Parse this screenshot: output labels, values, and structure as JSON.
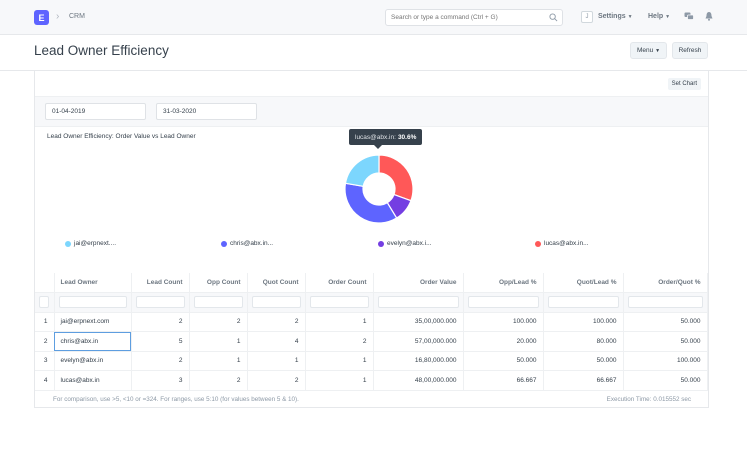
{
  "navbar": {
    "logo_letter": "E",
    "breadcrumb": "CRM",
    "search_placeholder": "Search or type a command (Ctrl + G)",
    "user_initial": "J",
    "settings_label": "Settings",
    "help_label": "Help"
  },
  "page": {
    "title": "Lead Owner Efficiency",
    "menu_label": "Menu",
    "refresh_label": "Refresh"
  },
  "report": {
    "set_chart_label": "Set Chart",
    "filters": {
      "from_date": "01-04-2019",
      "to_date": "31-03-2020"
    },
    "chart_title": "Lead Owner Efficiency: Order Value vs Lead Owner",
    "tooltip": {
      "label": "lucas@abx.in:",
      "value": "30.6%"
    },
    "legend": [
      "jai@erpnext....",
      "chris@abx.in...",
      "evelyn@abx.i...",
      "lucas@abx.in..."
    ],
    "columns": [
      "Lead Owner",
      "Lead Count",
      "Opp Count",
      "Quot Count",
      "Order Count",
      "Order Value",
      "Opp/Lead %",
      "Quot/Lead %",
      "Order/Quot %"
    ],
    "rows": [
      {
        "idx": "1",
        "owner": "jai@erpnext.com",
        "lead": "2",
        "opp": "2",
        "quot": "2",
        "order": "1",
        "value": "35,00,000.000",
        "opp_lead": "100.000",
        "quot_lead": "100.000",
        "order_quot": "50.000"
      },
      {
        "idx": "2",
        "owner": "chris@abx.in",
        "lead": "5",
        "opp": "1",
        "quot": "4",
        "order": "2",
        "value": "57,00,000.000",
        "opp_lead": "20.000",
        "quot_lead": "80.000",
        "order_quot": "50.000"
      },
      {
        "idx": "3",
        "owner": "evelyn@abx.in",
        "lead": "2",
        "opp": "1",
        "quot": "1",
        "order": "1",
        "value": "16,80,000.000",
        "opp_lead": "50.000",
        "quot_lead": "50.000",
        "order_quot": "100.000"
      },
      {
        "idx": "4",
        "owner": "lucas@abx.in",
        "lead": "3",
        "opp": "2",
        "quot": "2",
        "order": "1",
        "value": "48,00,000.000",
        "opp_lead": "66.667",
        "quot_lead": "66.667",
        "order_quot": "50.000"
      }
    ],
    "footer_note": "For comparison, use >5, <10 or =324. For ranges, use 5:10 (for values between 5 & 10).",
    "execution_time": "Execution Time: 0.015552 sec"
  },
  "chart_data": {
    "type": "pie",
    "title": "Lead Owner Efficiency: Order Value vs Lead Owner",
    "categories": [
      "jai@erpnext.com",
      "chris@abx.in",
      "evelyn@abx.in",
      "lucas@abx.in"
    ],
    "values": [
      3500000,
      5700000,
      1680000,
      4800000
    ],
    "colors": [
      "#7cd6fd",
      "#5e64ff",
      "#743ee2",
      "#ff5858"
    ]
  }
}
